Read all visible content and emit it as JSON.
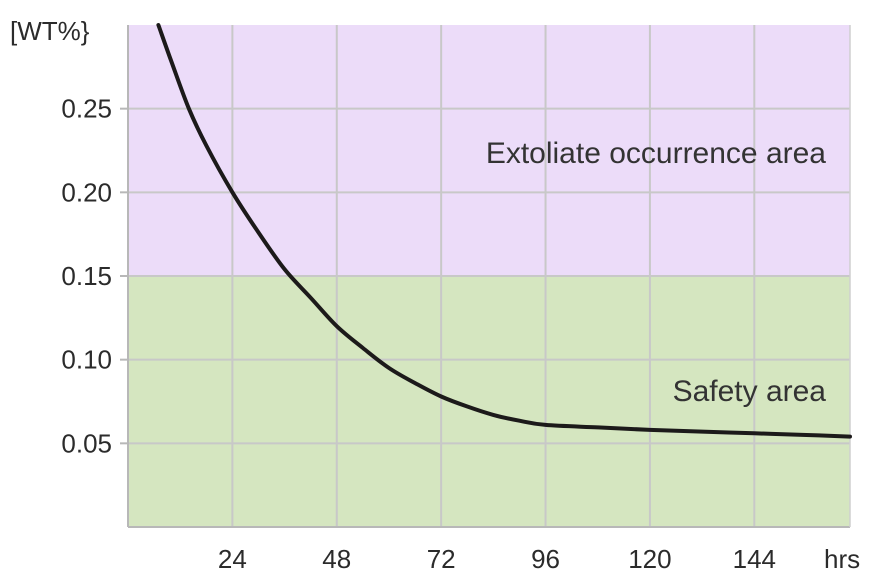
{
  "chart_data": {
    "type": "line",
    "title": "",
    "xlabel": "hrs",
    "ylabel": "[WT%}",
    "xlim": [
      0,
      166
    ],
    "ylim": [
      0,
      0.3
    ],
    "x_ticks": [
      24,
      48,
      72,
      96,
      120,
      144
    ],
    "x_tick_labels": [
      "24",
      "48",
      "72",
      "96",
      "120",
      "144"
    ],
    "y_ticks": [
      0.05,
      0.1,
      0.15,
      0.2,
      0.25
    ],
    "y_tick_labels": [
      "0.05",
      "0.10",
      "0.15",
      "0.20",
      "0.25"
    ],
    "grid": true,
    "regions": [
      {
        "label": "Extoliate occurrence area",
        "y_from": 0.15,
        "y_to": 0.3,
        "color": "#ecdcf9"
      },
      {
        "label": "Safety area",
        "y_from": 0.0,
        "y_to": 0.15,
        "color": "#d5e6c0"
      }
    ],
    "series": [
      {
        "color": "#1c1a1a",
        "points": [
          [
            7,
            0.3
          ],
          [
            10,
            0.278
          ],
          [
            14,
            0.25
          ],
          [
            18,
            0.228
          ],
          [
            24,
            0.2
          ],
          [
            30,
            0.176
          ],
          [
            36,
            0.154
          ],
          [
            42,
            0.137
          ],
          [
            48,
            0.12
          ],
          [
            54,
            0.107
          ],
          [
            60,
            0.095
          ],
          [
            66,
            0.086
          ],
          [
            72,
            0.078
          ],
          [
            78,
            0.072
          ],
          [
            84,
            0.067
          ],
          [
            90,
            0.0635
          ],
          [
            96,
            0.061
          ],
          [
            108,
            0.0595
          ],
          [
            120,
            0.058
          ],
          [
            132,
            0.057
          ],
          [
            144,
            0.056
          ],
          [
            156,
            0.055
          ],
          [
            166,
            0.054
          ]
        ]
      }
    ]
  }
}
